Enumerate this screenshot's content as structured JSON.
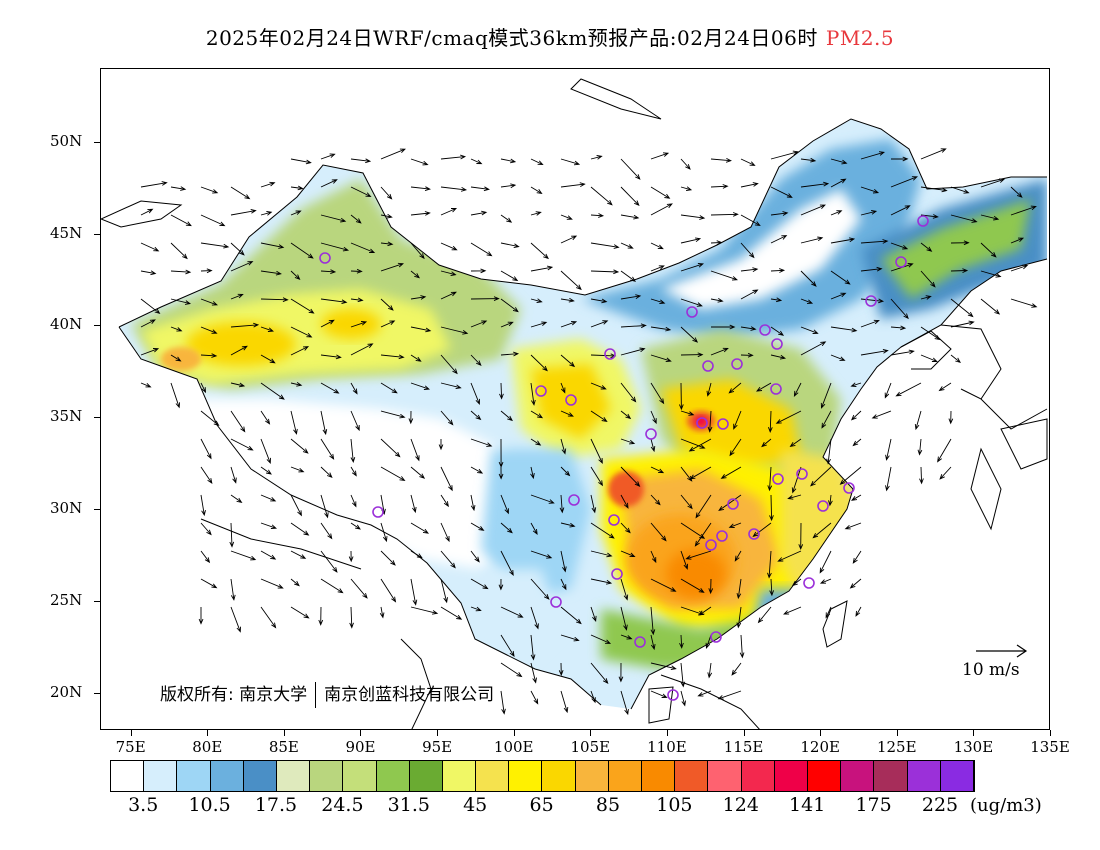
{
  "title": {
    "text": "2025年02月24日WRF/cmaq模式36km预报产品:02月24日06时",
    "species": "PM2.5",
    "species_color": "#e8383d"
  },
  "map": {
    "lon_range": [
      73,
      135
    ],
    "lat_range": [
      18,
      54
    ],
    "lat_ticks": [
      "50N",
      "45N",
      "40N",
      "35N",
      "30N",
      "25N",
      "20N"
    ],
    "lon_ticks": [
      "75E",
      "80E",
      "85E",
      "90E",
      "95E",
      "100E",
      "105E",
      "110E",
      "115E",
      "120E",
      "125E",
      "130E",
      "135E"
    ],
    "wind_reference": "10 m/s",
    "copyright_left": "版权所有: 南京大学",
    "copyright_right": "南京创蓝科技有限公司",
    "station_marker_color": "#9b30d9"
  },
  "legend": {
    "colors": [
      "#ffffff",
      "#d6eefc",
      "#9ed6f5",
      "#6bb0de",
      "#4a8fc6",
      "#dfeabd",
      "#b9d67e",
      "#c4df7a",
      "#8fc84f",
      "#6aab32",
      "#f0f765",
      "#f5e24e",
      "#fff100",
      "#fad700",
      "#f8b53c",
      "#faa41b",
      "#f98a00",
      "#f05a28",
      "#fe6270",
      "#f3284e",
      "#ef0048",
      "#ff0000",
      "#c8127d",
      "#a72d5a",
      "#9b30d9",
      "#8a2be2"
    ],
    "labels": [
      "3.5",
      "10.5",
      "17.5",
      "24.5",
      "31.5",
      "45",
      "65",
      "85",
      "105",
      "124",
      "141",
      "175",
      "225"
    ],
    "unit": "(ug/m3)"
  }
}
